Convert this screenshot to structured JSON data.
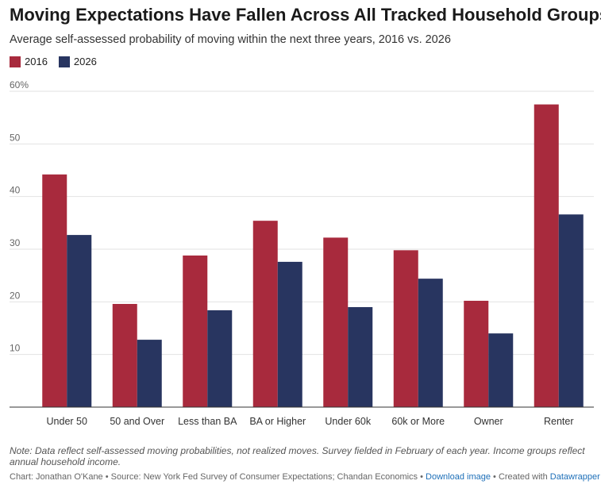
{
  "chart_data": {
    "type": "bar",
    "title": "Moving Expectations Have Fallen Across All Tracked Household Groups",
    "subtitle": "Average self-assessed probability of moving within the next three years, 2016 vs. 2026",
    "categories": [
      "Under 50",
      "50 and Over",
      "Less than BA",
      "BA or Higher",
      "Under 60k",
      "60k or More",
      "Owner",
      "Renter"
    ],
    "series": [
      {
        "name": "2016",
        "color": "#a82a3d",
        "values": [
          44.2,
          19.6,
          28.8,
          35.4,
          32.2,
          29.8,
          20.2,
          57.5
        ]
      },
      {
        "name": "2026",
        "color": "#283560",
        "values": [
          32.7,
          12.8,
          18.4,
          27.6,
          19.0,
          24.4,
          14.0,
          36.6
        ]
      }
    ],
    "ylim": [
      0,
      60
    ],
    "yticks": [
      {
        "value": 60,
        "label": "60%"
      },
      {
        "value": 50,
        "label": "50"
      },
      {
        "value": 40,
        "label": "40"
      },
      {
        "value": 30,
        "label": "30"
      },
      {
        "value": 20,
        "label": "20"
      },
      {
        "value": 10,
        "label": "10"
      }
    ],
    "grid": true,
    "legend_position": "top-left",
    "xlabel": "",
    "ylabel": ""
  },
  "footnote": "Note: Data reflect self-assessed moving probabilities, not realized moves. Survey fielded in February of each year. Income groups reflect annual household income.",
  "credit": {
    "text": "Chart: Jonathan O'Kane • Source: New York Fed Survey of Consumer Expectations; Chandan Economics •",
    "download_label": "Download image",
    "created_prefix": "• Created with",
    "datawrapper_label": "Datawrapper"
  }
}
